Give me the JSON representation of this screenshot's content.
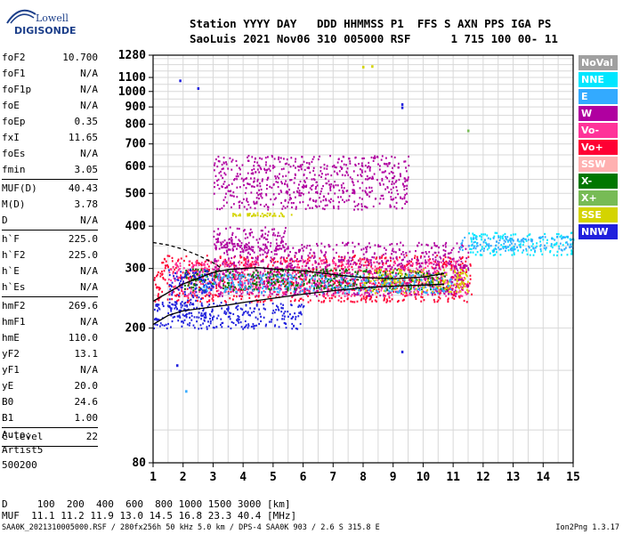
{
  "logo": {
    "line1": "Lowell",
    "line2": "DIGISONDE"
  },
  "header": {
    "line1": "Station YYYY DAY   DDD HHMMSS P1  FFS S AXN PPS IGA PS",
    "line2": "SaoLuis 2021 Nov06 310 005000 RSF      1 715 100 00- 11"
  },
  "params": {
    "group1": [
      {
        "k": "foF2",
        "v": "10.700"
      },
      {
        "k": "foF1",
        "v": "N/A"
      },
      {
        "k": "foF1p",
        "v": "N/A"
      },
      {
        "k": "foE",
        "v": "N/A"
      },
      {
        "k": "foEp",
        "v": "0.35"
      },
      {
        "k": "fxI",
        "v": "11.65"
      },
      {
        "k": "foEs",
        "v": "N/A"
      },
      {
        "k": "fmin",
        "v": "3.05"
      }
    ],
    "group2": [
      {
        "k": "MUF(D)",
        "v": "40.43"
      },
      {
        "k": "M(D)",
        "v": "3.78"
      },
      {
        "k": "D",
        "v": "N/A"
      }
    ],
    "group3": [
      {
        "k": "h`F",
        "v": "225.0"
      },
      {
        "k": "h`F2",
        "v": "225.0"
      },
      {
        "k": "h`E",
        "v": "N/A"
      },
      {
        "k": "h`Es",
        "v": "N/A"
      }
    ],
    "group4": [
      {
        "k": "hmF2",
        "v": "269.6"
      },
      {
        "k": "hmF1",
        "v": "N/A"
      },
      {
        "k": "hmE",
        "v": "110.0"
      },
      {
        "k": "yF2",
        "v": "13.1"
      },
      {
        "k": "yF1",
        "v": "N/A"
      },
      {
        "k": "yE",
        "v": "20.0"
      },
      {
        "k": "B0",
        "v": "24.6"
      },
      {
        "k": "B1",
        "v": "1.00"
      }
    ],
    "clevel": {
      "k": "C-level",
      "v": "22"
    }
  },
  "auto": {
    "line1": "Auto:",
    "line2": "Artist5",
    "line3": "500200"
  },
  "muf_table": {
    "d_line": "D     100  200  400  600  800 1000 1500 3000 [km]",
    "muf_line": "MUF  11.1 11.2 11.9 13.0 14.5 16.8 23.3 40.4 [MHz]"
  },
  "footer": {
    "left": "SAA0K_2021310005000.RSF / 280fx256h 50 kHz 5.0 km / DPS-4 SAA0K 903 / 2.6 S 315.8 E",
    "right": "Ion2Png 1.3.17"
  },
  "legend": [
    {
      "label": "NoVal",
      "color": "#a0a0a0"
    },
    {
      "label": "NNE",
      "color": "#00e6ff"
    },
    {
      "label": "E",
      "color": "#33aaff"
    },
    {
      "label": "W",
      "color": "#b000a0"
    },
    {
      "label": "Vo-",
      "color": "#ff3399"
    },
    {
      "label": "Vo+",
      "color": "#ff0033"
    },
    {
      "label": "SSW",
      "color": "#ffb0b0"
    },
    {
      "label": "X-",
      "color": "#007700"
    },
    {
      "label": "X+",
      "color": "#77bb55"
    },
    {
      "label": "SSE",
      "color": "#d4d400"
    },
    {
      "label": "NNW",
      "color": "#2020dd"
    }
  ],
  "chart_data": {
    "type": "scatter",
    "xlabel": "",
    "ylabel": "",
    "xlim": [
      1,
      15
    ],
    "ylim": [
      80,
      1280
    ],
    "y_scale": "log",
    "x_ticks": [
      1,
      2,
      3,
      4,
      5,
      6,
      7,
      8,
      9,
      10,
      11,
      12,
      13,
      14,
      15
    ],
    "y_ticks": [
      80,
      200,
      300,
      400,
      500,
      600,
      700,
      800,
      900,
      1000,
      1100,
      1280
    ],
    "grid": true,
    "legend_position": "right",
    "profile_trace": {
      "x": [
        1.0,
        1.5,
        2.0,
        2.5,
        3.0,
        3.5,
        4.0,
        5.0,
        6.0,
        7.0,
        8.0,
        9.0,
        10.0,
        10.7
      ],
      "y": [
        205,
        218,
        225,
        228,
        231,
        234,
        238,
        245,
        252,
        258,
        263,
        266,
        268,
        269.6
      ]
    },
    "o_trace": {
      "x": [
        1.0,
        2.0,
        3.0,
        3.5,
        4.0,
        4.5,
        5.0,
        6.0,
        7.0,
        8.0,
        9.0,
        10.0,
        10.7
      ],
      "y": [
        240,
        270,
        292,
        298,
        300,
        302,
        299,
        295,
        288,
        282,
        280,
        283,
        290
      ]
    },
    "dashed_trace": {
      "x": [
        1.0,
        1.5,
        2.0,
        2.5,
        3.0,
        3.3
      ],
      "y": [
        358,
        352,
        342,
        328,
        312,
        300
      ]
    },
    "echo_clusters": [
      {
        "x_range": [
          1.0,
          11.6
        ],
        "y_range": [
          240,
          330
        ],
        "color": "#ff0033"
      },
      {
        "x_range": [
          1.5,
          11.5
        ],
        "y_range": [
          250,
          320
        ],
        "color": "#ff3399"
      },
      {
        "x_range": [
          3.0,
          11.5
        ],
        "y_range": [
          250,
          360
        ],
        "color": "#b000a0"
      },
      {
        "x_range": [
          2.0,
          10.8
        ],
        "y_range": [
          260,
          300
        ],
        "color": "#007700"
      },
      {
        "x_range": [
          8.0,
          11.5
        ],
        "y_range": [
          255,
          300
        ],
        "color": "#d4d400"
      },
      {
        "x_range": [
          2.5,
          11.0
        ],
        "y_range": [
          255,
          290
        ],
        "color": "#33aaff"
      },
      {
        "x_range": [
          3.0,
          5.5
        ],
        "y_range": [
          340,
          400
        ],
        "color": "#b000a0"
      },
      {
        "x_range": [
          3.6,
          5.6
        ],
        "y_range": [
          430,
          440
        ],
        "color": "#d4d400"
      },
      {
        "x_range": [
          3.0,
          9.5
        ],
        "y_range": [
          450,
          650
        ],
        "color": "#b000a0"
      },
      {
        "x_range": [
          11.5,
          15.0
        ],
        "y_range": [
          330,
          385
        ],
        "color": "#00e6ff"
      },
      {
        "x_range": [
          11.2,
          15.0
        ],
        "y_range": [
          340,
          375
        ],
        "color": "#33aaff"
      },
      {
        "x_range": [
          1.5,
          3.0
        ],
        "y_range": [
          215,
          300
        ],
        "color": "#2020dd"
      },
      {
        "x_range": [
          1.0,
          6.0
        ],
        "y_range": [
          200,
          240
        ],
        "color": "#2020dd"
      }
    ],
    "isolated_points": [
      {
        "x": 1.9,
        "y": 1075,
        "color": "#2020dd"
      },
      {
        "x": 2.5,
        "y": 1020,
        "color": "#2020dd"
      },
      {
        "x": 9.3,
        "y": 915,
        "color": "#2020dd"
      },
      {
        "x": 9.3,
        "y": 895,
        "color": "#2020dd"
      },
      {
        "x": 9.3,
        "y": 170,
        "color": "#2020dd"
      },
      {
        "x": 1.8,
        "y": 155,
        "color": "#2020dd"
      },
      {
        "x": 2.1,
        "y": 130,
        "color": "#33aaff"
      },
      {
        "x": 8.0,
        "y": 1180,
        "color": "#d4d400"
      },
      {
        "x": 8.3,
        "y": 1185,
        "color": "#d4d400"
      },
      {
        "x": 11.5,
        "y": 765,
        "color": "#77bb55"
      }
    ]
  }
}
